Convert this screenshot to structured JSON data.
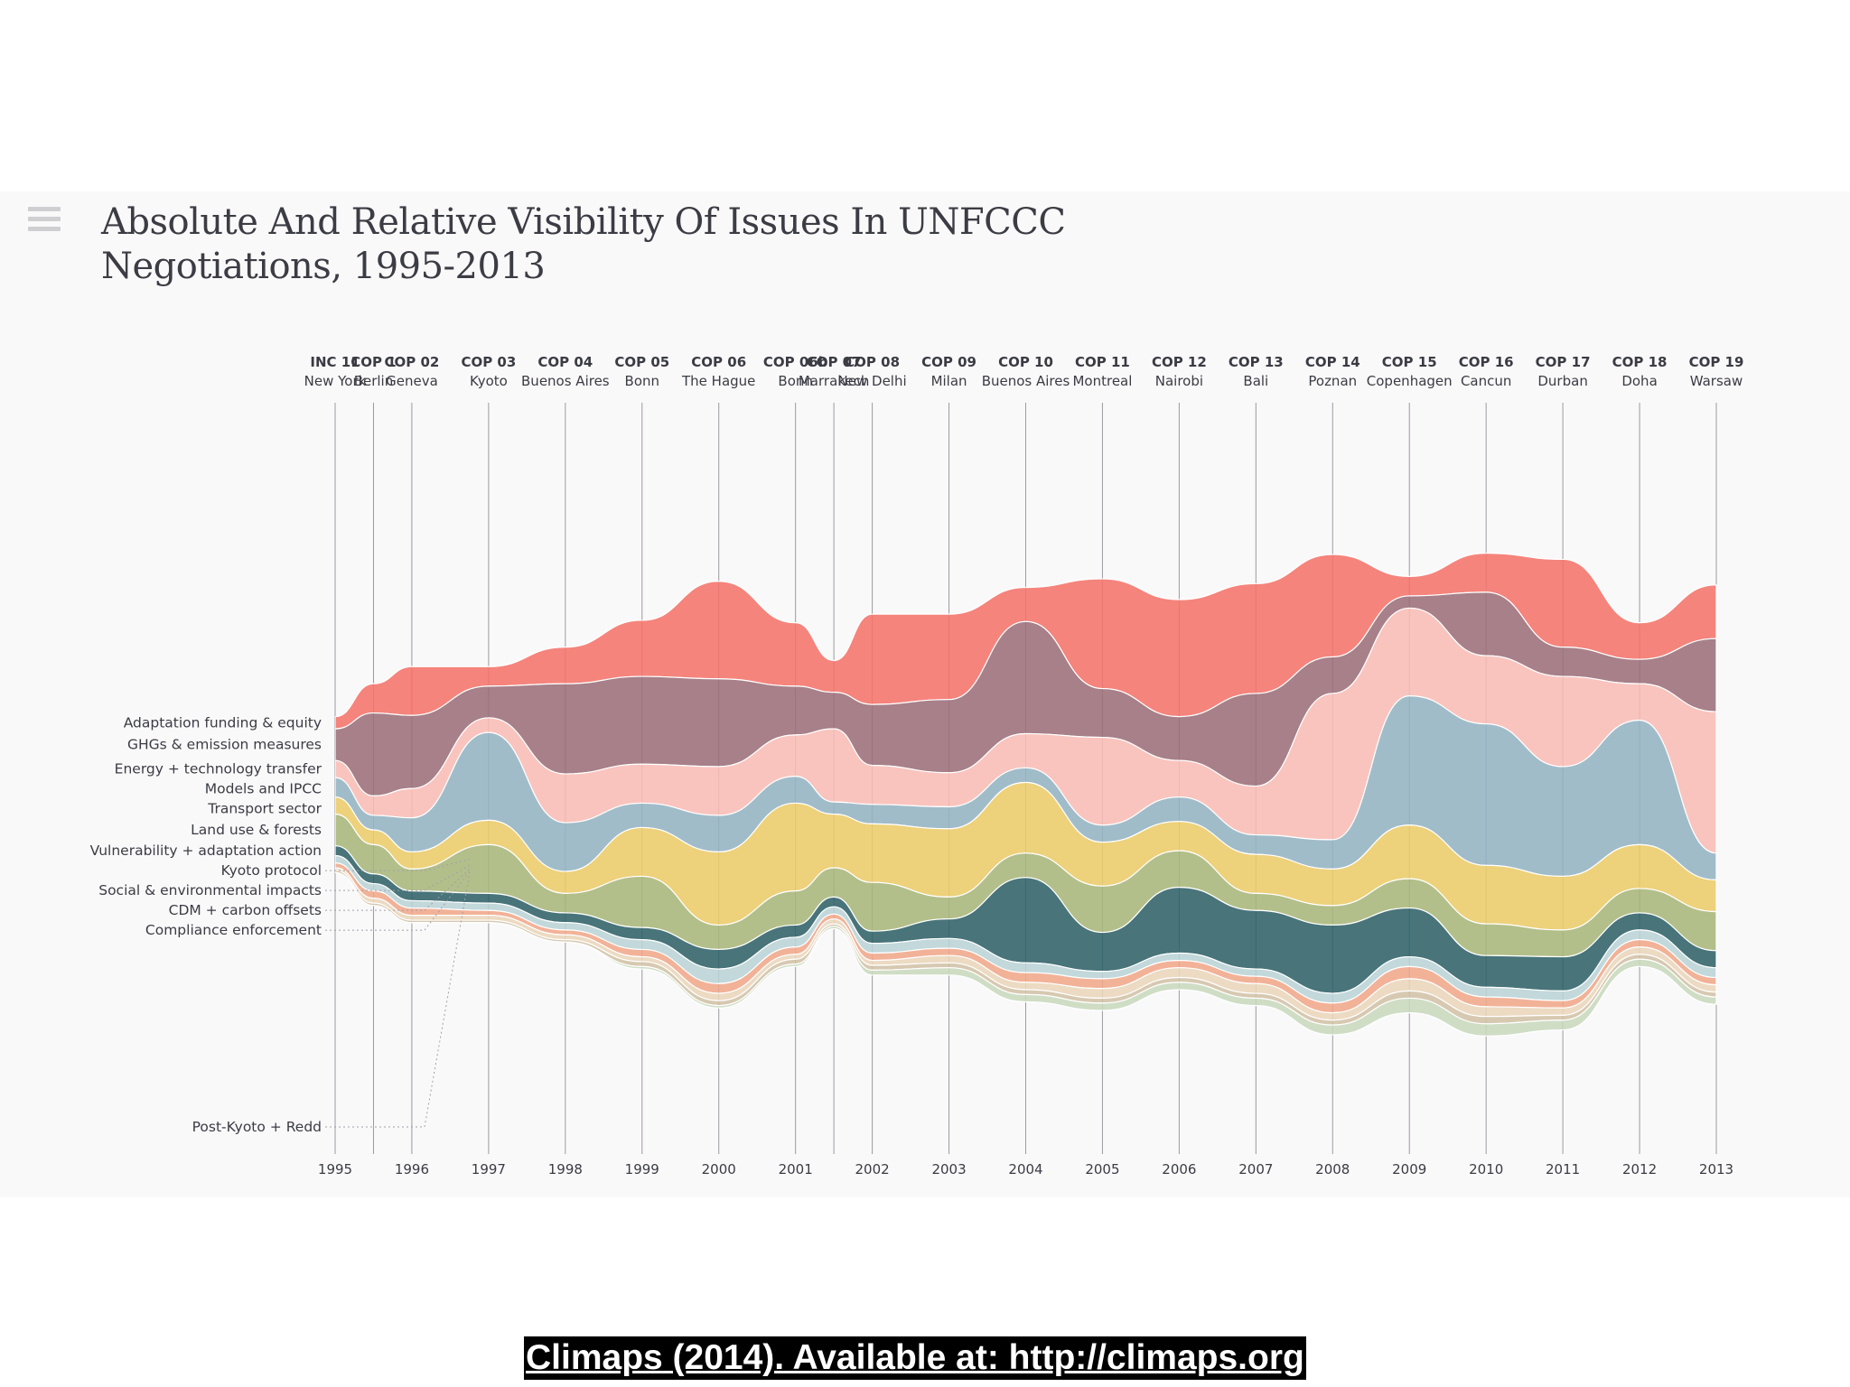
{
  "title_line1": "Absolute And Relative Visibility Of Issues In UNFCCC",
  "title_line2": "Negotiations, 1995-2013",
  "caption": "Climaps (2014). Available at: http://climaps.org",
  "icons": {
    "menu": "hamburger-menu-icon"
  },
  "chart_data": {
    "type": "streamgraph",
    "title": "Absolute And Relative Visibility Of Issues In UNFCCC Negotiations, 1995-2013",
    "conferences": [
      {
        "code": "INC 11",
        "city": "New York",
        "year": 1995
      },
      {
        "code": "COP 1",
        "city": "Berlin",
        "year": 1995.5
      },
      {
        "code": "COP 02",
        "city": "Geneva",
        "year": 1996
      },
      {
        "code": "COP 03",
        "city": "Kyoto",
        "year": 1997
      },
      {
        "code": "COP 04",
        "city": "Buenos Aires",
        "year": 1998
      },
      {
        "code": "COP 05",
        "city": "Bonn",
        "year": 1999
      },
      {
        "code": "COP 06",
        "city": "The Hague",
        "year": 2000
      },
      {
        "code": "COP 06b",
        "city": "Bonn",
        "year": 2001
      },
      {
        "code": "COP 07",
        "city": "Marrakech",
        "year": 2001.5
      },
      {
        "code": "COP 08",
        "city": "New Delhi",
        "year": 2002
      },
      {
        "code": "COP 09",
        "city": "Milan",
        "year": 2003
      },
      {
        "code": "COP 10",
        "city": "Buenos Aires",
        "year": 2004
      },
      {
        "code": "COP 11",
        "city": "Montreal",
        "year": 2005
      },
      {
        "code": "COP 12",
        "city": "Nairobi",
        "year": 2006
      },
      {
        "code": "COP 13",
        "city": "Bali",
        "year": 2007
      },
      {
        "code": "COP 14",
        "city": "Poznan",
        "year": 2008
      },
      {
        "code": "COP 15",
        "city": "Copenhagen",
        "year": 2009
      },
      {
        "code": "COP 16",
        "city": "Cancun",
        "year": 2010
      },
      {
        "code": "COP 17",
        "city": "Durban",
        "year": 2011
      },
      {
        "code": "COP 18",
        "city": "Doha",
        "year": 2012
      },
      {
        "code": "COP 19",
        "city": "Warsaw",
        "year": 2013
      }
    ],
    "year_ticks": [
      "1995",
      "1996",
      "1997",
      "1998",
      "1999",
      "2000",
      "2001",
      "2002",
      "2003",
      "2004",
      "2005",
      "2006",
      "2007",
      "2008",
      "2009",
      "2010",
      "2011",
      "2012",
      "2013"
    ],
    "year_tick_values": [
      1995,
      1996,
      1997,
      1998,
      1999,
      2000,
      2001,
      2002,
      2003,
      2004,
      2005,
      2006,
      2007,
      2008,
      2009,
      2010,
      2011,
      2012,
      2013
    ],
    "series": [
      {
        "name": "Adaptation funding & equity",
        "color": "#f4736a",
        "values": [
          0.5,
          1.2,
          2.0,
          0.8,
          1.5,
          2.3,
          4.0,
          2.6,
          1.3,
          3.7,
          3.5,
          1.4,
          4.5,
          4.8,
          4.5,
          4.2,
          0.8,
          1.6,
          3.6,
          1.5,
          2.2
        ]
      },
      {
        "name": "GHGs & emission measures",
        "color": "#9b6e79",
        "values": [
          1.3,
          3.4,
          3.0,
          1.3,
          3.7,
          3.6,
          3.6,
          2.0,
          1.5,
          2.5,
          3.0,
          4.6,
          2.0,
          1.8,
          3.8,
          1.5,
          0.5,
          2.6,
          1.2,
          1.0,
          3.0
        ]
      },
      {
        "name": "Energy + technology transfer",
        "color": "#f8bcb5",
        "values": [
          0.7,
          0.8,
          1.2,
          0.6,
          2.0,
          1.6,
          2.0,
          1.7,
          3.0,
          1.6,
          1.4,
          1.4,
          3.6,
          1.5,
          2.0,
          6.0,
          3.6,
          2.8,
          3.7,
          1.5,
          5.8
        ]
      },
      {
        "name": "Models and IPCC",
        "color": "#94b3c1",
        "values": [
          0.8,
          0.6,
          1.4,
          3.6,
          2.0,
          1.0,
          1.5,
          1.1,
          0.5,
          0.8,
          0.9,
          0.6,
          0.7,
          1.0,
          0.8,
          1.2,
          5.3,
          5.8,
          4.5,
          5.1,
          1.1
        ]
      },
      {
        "name": "Transport sector",
        "color": "#eacb69",
        "values": [
          0.7,
          0.6,
          0.7,
          1.0,
          0.9,
          2.0,
          3.0,
          3.6,
          2.2,
          2.4,
          2.8,
          2.9,
          1.8,
          1.2,
          1.6,
          1.5,
          2.2,
          2.4,
          2.2,
          1.8,
          1.3
        ]
      },
      {
        "name": "Land use & forests",
        "color": "#a9b67a",
        "values": [
          1.3,
          1.2,
          0.9,
          2.0,
          0.8,
          2.1,
          1.0,
          1.4,
          1.2,
          2.0,
          0.9,
          1.0,
          1.9,
          1.5,
          0.7,
          0.8,
          1.2,
          1.3,
          1.1,
          1.0,
          1.6
        ]
      },
      {
        "name": "Vulnerability + adaptation action",
        "color": "#2f6168",
        "values": [
          0.4,
          0.4,
          0.4,
          0.4,
          0.4,
          0.5,
          0.8,
          0.5,
          0.4,
          0.5,
          0.8,
          3.5,
          1.6,
          2.7,
          2.4,
          2.8,
          2.0,
          1.3,
          1.4,
          0.7,
          0.7
        ]
      },
      {
        "name": "Kyoto protocol",
        "color": "#b9d3d6",
        "values": [
          0.3,
          0.3,
          0.3,
          0.3,
          0.3,
          0.4,
          0.6,
          0.4,
          0.3,
          0.4,
          0.4,
          0.4,
          0.3,
          0.3,
          0.3,
          0.4,
          0.4,
          0.4,
          0.4,
          0.4,
          0.4
        ]
      },
      {
        "name": "Social & environmental impacts",
        "color": "#f0a78a",
        "values": [
          0.2,
          0.3,
          0.3,
          0.2,
          0.2,
          0.3,
          0.4,
          0.3,
          0.2,
          0.3,
          0.3,
          0.4,
          0.4,
          0.3,
          0.3,
          0.4,
          0.5,
          0.4,
          0.3,
          0.3,
          0.3
        ]
      },
      {
        "name": "CDM + carbon offsets",
        "color": "#e9d5b9",
        "values": [
          0.1,
          0.2,
          0.2,
          0.2,
          0.2,
          0.2,
          0.3,
          0.2,
          0.2,
          0.2,
          0.3,
          0.3,
          0.4,
          0.4,
          0.4,
          0.3,
          0.5,
          0.4,
          0.3,
          0.3,
          0.3
        ]
      },
      {
        "name": "Compliance enforcement",
        "color": "#d1c1a6",
        "values": [
          0.1,
          0.1,
          0.1,
          0.1,
          0.1,
          0.2,
          0.2,
          0.2,
          0.1,
          0.2,
          0.2,
          0.2,
          0.2,
          0.2,
          0.2,
          0.2,
          0.3,
          0.3,
          0.2,
          0.2,
          0.2
        ]
      },
      {
        "name": "Post-Kyoto + Redd",
        "color": "#c8d8bd",
        "values": [
          0.0,
          0.0,
          0.0,
          0.0,
          0.0,
          0.1,
          0.1,
          0.1,
          0.1,
          0.2,
          0.3,
          0.3,
          0.3,
          0.3,
          0.3,
          0.4,
          0.6,
          0.5,
          0.4,
          0.3,
          0.3
        ]
      }
    ],
    "legend_placement": "left",
    "grid": "vertical lines at each conference"
  }
}
